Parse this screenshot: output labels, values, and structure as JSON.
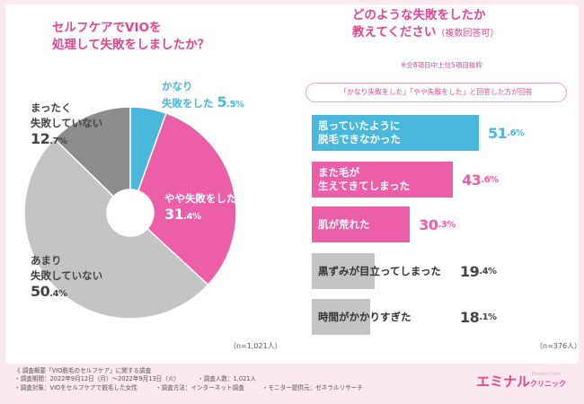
{
  "charts": {
    "pie": {
      "title_line1": "セルフケアでVIOを",
      "title_line2": "処理して失敗をしましたか？",
      "n": "（n=1,021人）"
    },
    "bar": {
      "title_line1": "どのような失敗をしたか",
      "title_line2": "教えてください",
      "title_small": "（複数回答可）",
      "note": "※全8項目中上位5項目抜粋",
      "criteria": "「かなり失敗をした」「やや失敗をした」と回答した方が回答",
      "n": "（n=376人）"
    }
  },
  "chart_data": [
    {
      "type": "pie",
      "slices": [
        {
          "label_line1": "かなり",
          "label_line2": "失敗をした",
          "value": 5.5,
          "value_int": "5",
          "value_dec": ".5%",
          "color": "#4ab8dd",
          "text_color": "#4ab8dd"
        },
        {
          "label_line1": "やや失敗をした",
          "label_line2": "",
          "value": 31.4,
          "value_int": "31",
          "value_dec": ".4%",
          "color": "#ec5ea7",
          "text_color": "#ffffff"
        },
        {
          "label_line1": "あまり",
          "label_line2": "失敗していない",
          "value": 50.4,
          "value_int": "50",
          "value_dec": ".4%",
          "color": "#c4c4c4",
          "text_color": "#444444"
        },
        {
          "label_line1": "まったく",
          "label_line2": "失敗していない",
          "value": 12.7,
          "value_int": "12",
          "value_dec": ".7%",
          "color": "#8d8d8d",
          "text_color": "#444444"
        }
      ]
    },
    {
      "type": "bar",
      "orientation": "horizontal",
      "categories": [
        "思っていたように\n脱毛できなかった",
        "また毛が\n生えてきてしまった",
        "肌が荒れた",
        "黒ずみが目立ってしまった",
        "時間がかかりすぎた"
      ],
      "values": [
        51.6,
        43.6,
        30.3,
        19.4,
        18.1
      ],
      "value_labels": [
        {
          "int": "51",
          "dec": ".6%"
        },
        {
          "int": "43",
          "dec": ".6%"
        },
        {
          "int": "30",
          "dec": ".3%"
        },
        {
          "int": "19",
          "dec": ".4%"
        },
        {
          "int": "18",
          "dec": ".1%"
        }
      ],
      "colors": [
        "#4ab8dd",
        "#ec5ea7",
        "#ec5ea7",
        "#c4c4c4",
        "#c4c4c4"
      ],
      "label_colors": [
        "#ffffff",
        "#ffffff",
        "#ffffff",
        "#333333",
        "#333333"
      ],
      "pct_colors": [
        "#4ab8dd",
        "#ec5ea7",
        "#ec5ea7",
        "#444444",
        "#444444"
      ]
    }
  ],
  "footer": {
    "line1": "《 調査概要「VIO脱毛のセルフケア」に関する調査",
    "line2a": "・調査期間：2022年9月12日（月）～2022年9月13日（火）",
    "line2b": "・調査人数：1,021人",
    "line3a": "・調査対象：VIOをセルフケアで脱毛した女性",
    "line3b": "・調査方法：インターネット調査",
    "line3c": "・モニター提供元：ゼネラルリサーチ"
  },
  "logo": {
    "main": "エミナル",
    "sub": "クリニック",
    "tiny": "Eminal Clinic"
  }
}
